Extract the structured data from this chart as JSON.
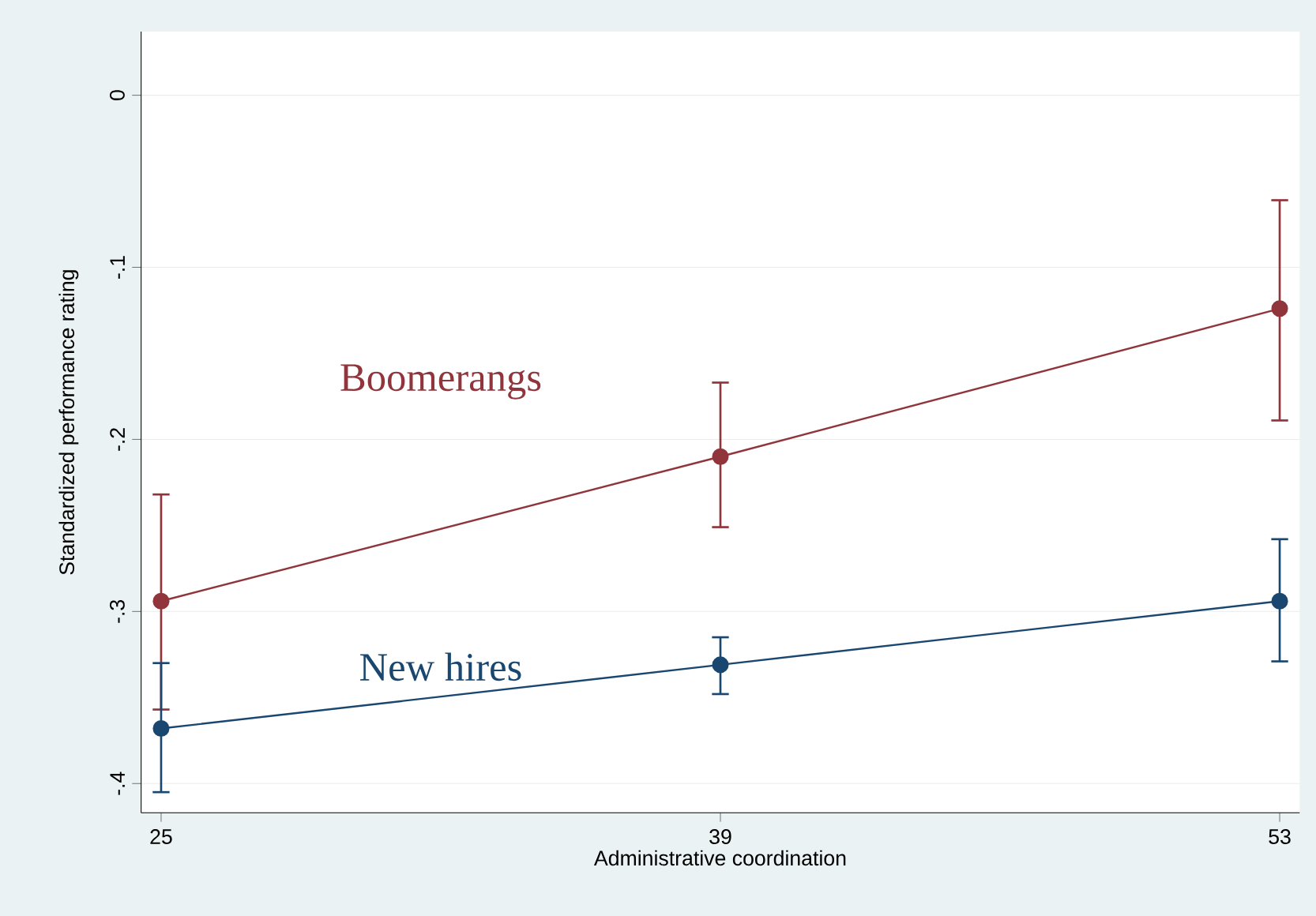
{
  "chart_data": {
    "type": "line",
    "xlabel": "Administrative coordination",
    "ylabel": "Standardized performance rating",
    "x": [
      25,
      39,
      53
    ],
    "series": [
      {
        "name": "Boomerangs",
        "color": "#90353b",
        "values": [
          -0.294,
          -0.21,
          -0.124
        ],
        "errors": [
          [
            -0.357,
            -0.232
          ],
          [
            -0.251,
            -0.167
          ],
          [
            -0.189,
            -0.061
          ]
        ]
      },
      {
        "name": "New hires",
        "color": "#1a476f",
        "values": [
          -0.368,
          -0.331,
          -0.294
        ],
        "errors": [
          [
            -0.405,
            -0.33
          ],
          [
            -0.348,
            -0.315
          ],
          [
            -0.329,
            -0.258
          ]
        ]
      }
    ],
    "xlim": [
      24.5,
      53.5
    ],
    "ylim": [
      -0.417,
      0.037
    ],
    "xticks": [
      25,
      39,
      53
    ],
    "yticks": [
      {
        "value": 0,
        "label": "0"
      },
      {
        "value": -0.1,
        "label": "-.1"
      },
      {
        "value": -0.2,
        "label": "-.2"
      },
      {
        "value": -0.3,
        "label": "-.3"
      },
      {
        "value": -0.4,
        "label": "-.4"
      }
    ],
    "grid": "y",
    "marker": "circle",
    "line_style": "solid"
  }
}
